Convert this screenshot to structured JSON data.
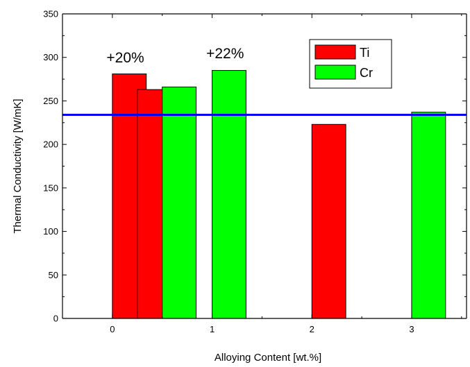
{
  "chart_data": {
    "type": "bar",
    "xlabel": "Alloying Content [wt.%]",
    "ylabel": "Thermal Conductivity [W/mK]",
    "xlim": [
      -0.5,
      3.55
    ],
    "ylim": [
      0,
      350
    ],
    "xticks": [
      0,
      1,
      2,
      3
    ],
    "yticks": [
      0,
      50,
      100,
      150,
      200,
      250,
      300,
      350
    ],
    "grid": false,
    "legend_position": "top-right",
    "series": [
      {
        "name": "Ti",
        "color": "#ff0000",
        "bars": [
          {
            "x": 0.0,
            "value": 281
          },
          {
            "x": 0.25,
            "value": 263
          },
          {
            "x": 2.0,
            "value": 223
          }
        ]
      },
      {
        "name": "Cr",
        "color": "#00ff00",
        "bars": [
          {
            "x": 0.5,
            "value": 266
          },
          {
            "x": 1.0,
            "value": 285
          },
          {
            "x": 3.0,
            "value": 237
          }
        ]
      }
    ],
    "bar_width": 0.34,
    "reference_line": {
      "value": 234,
      "color": "#0000ee"
    },
    "annotations": [
      {
        "text": "+20%",
        "x": 0.13,
        "y": 294
      },
      {
        "text": "+22%",
        "x": 1.13,
        "y": 299
      }
    ]
  }
}
